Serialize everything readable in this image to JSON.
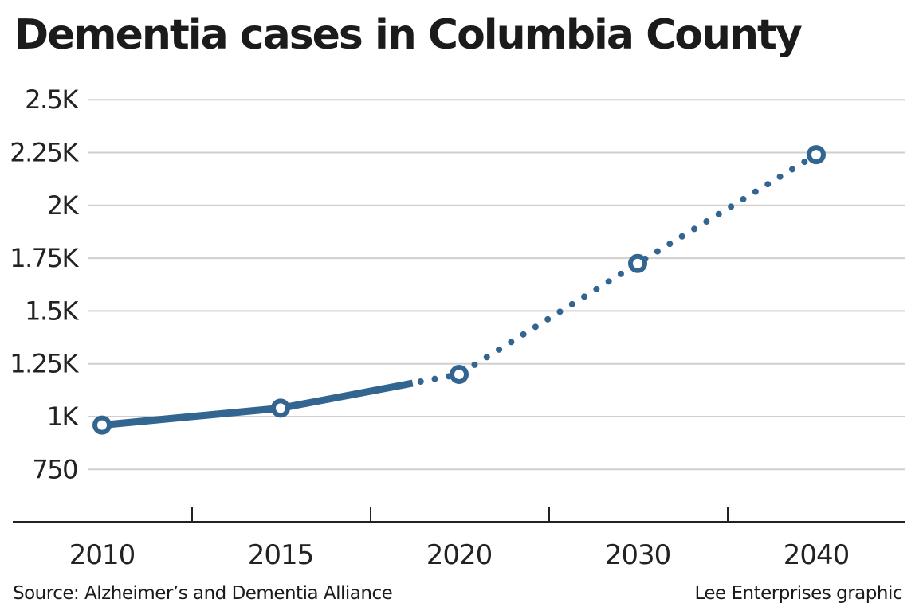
{
  "chart_data": {
    "type": "line",
    "title": "Dementia cases in Columbia County",
    "categories": [
      "2010",
      "2015",
      "2020",
      "2030",
      "2040"
    ],
    "y_ticks": [
      {
        "value": 750,
        "label": "750"
      },
      {
        "value": 1000,
        "label": "1K"
      },
      {
        "value": 1250,
        "label": "1.25K"
      },
      {
        "value": 1500,
        "label": "1.5K"
      },
      {
        "value": 1750,
        "label": "1.75K"
      },
      {
        "value": 2000,
        "label": "2K"
      },
      {
        "value": 2250,
        "label": "2.25K"
      },
      {
        "value": 2500,
        "label": "2.5K"
      }
    ],
    "ylim": [
      500,
      2500
    ],
    "grid": true,
    "series": [
      {
        "values": [
          960,
          1040,
          1200,
          1725,
          2240
        ]
      }
    ],
    "line_style": {
      "solid_through": "2015",
      "dotted_from": "2015"
    },
    "source": "Source: Alzheimer’s and Dementia Alliance",
    "credit": "Lee Enterprises graphic",
    "colors": {
      "line": "#336591",
      "grid": "#cfcfcf",
      "axis": "#222222",
      "marker_fill": "#ffffff"
    }
  }
}
